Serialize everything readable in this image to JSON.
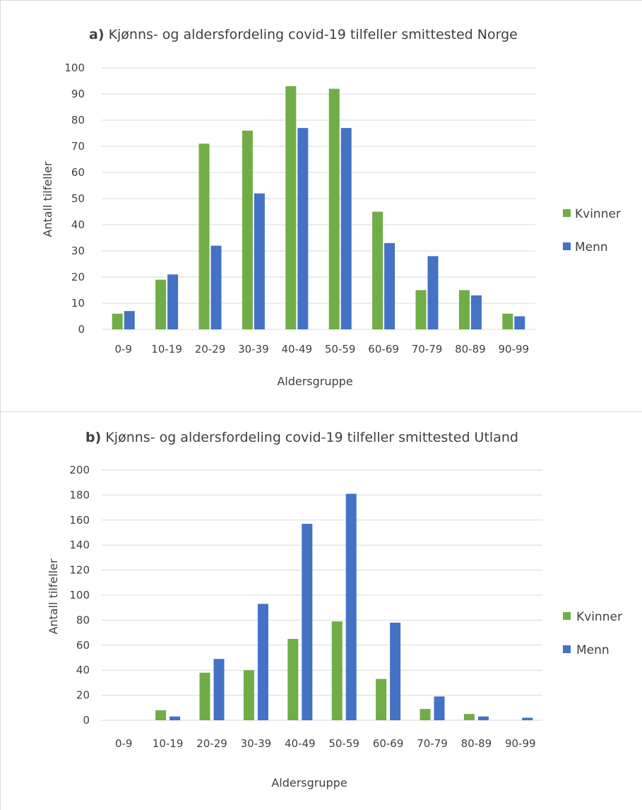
{
  "colors": {
    "kvinner": "#70ad47",
    "menn": "#4472c4"
  },
  "chart_data": [
    {
      "type": "bar",
      "title_prefix": "a)",
      "title": "Kjønns- og aldersfordeling covid-19 tilfeller smittested Norge",
      "xlabel": "Aldersgruppe",
      "ylabel": "Antall tilfeller",
      "ylim": [
        0,
        100
      ],
      "yticks": [
        "0",
        "10",
        "20",
        "30",
        "40",
        "50",
        "60",
        "70",
        "80",
        "90",
        "100"
      ],
      "categories": [
        "0-9",
        "10-19",
        "20-29",
        "30-39",
        "40-49",
        "50-59",
        "60-69",
        "70-79",
        "80-89",
        "90-99"
      ],
      "grid": true,
      "legend_position": "right",
      "series": [
        {
          "name": "Kvinner",
          "color": "#70ad47",
          "values": [
            6,
            19,
            71,
            76,
            93,
            92,
            45,
            15,
            15,
            6
          ]
        },
        {
          "name": "Menn",
          "color": "#4472c4",
          "values": [
            7,
            21,
            32,
            52,
            77,
            77,
            33,
            28,
            13,
            5
          ]
        }
      ]
    },
    {
      "type": "bar",
      "title_prefix": "b)",
      "title": "Kjønns- og aldersfordeling covid-19 tilfeller smittested Utland",
      "xlabel": "Aldersgruppe",
      "ylabel": "Antall tilfeller",
      "ylim": [
        0,
        200
      ],
      "yticks": [
        "0",
        "20",
        "40",
        "60",
        "80",
        "100",
        "120",
        "140",
        "160",
        "180",
        "200"
      ],
      "categories": [
        "0-9",
        "10-19",
        "20-29",
        "30-39",
        "40-49",
        "50-59",
        "60-69",
        "70-79",
        "80-89",
        "90-99"
      ],
      "grid": true,
      "legend_position": "right",
      "series": [
        {
          "name": "Kvinner",
          "color": "#70ad47",
          "values": [
            0,
            8,
            38,
            40,
            65,
            79,
            33,
            9,
            5,
            0
          ]
        },
        {
          "name": "Menn",
          "color": "#4472c4",
          "values": [
            0,
            3,
            49,
            93,
            157,
            181,
            78,
            19,
            3,
            2
          ]
        }
      ]
    }
  ]
}
